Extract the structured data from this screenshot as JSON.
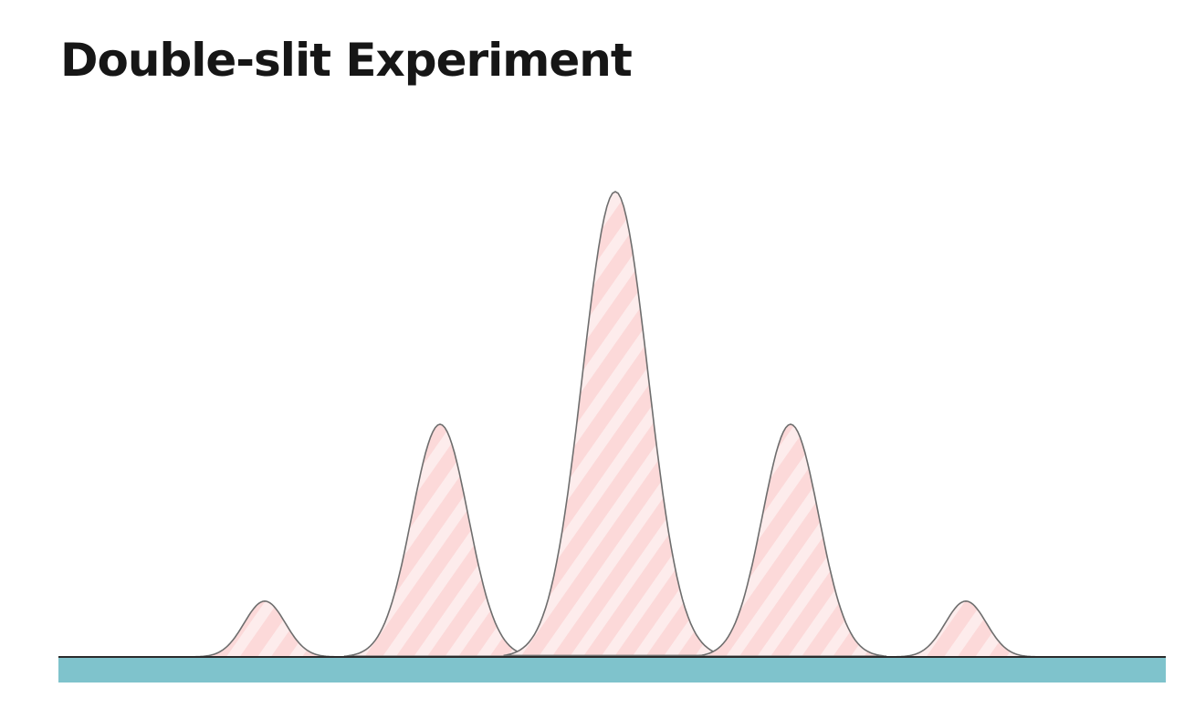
{
  "title": "Double-slit Experiment",
  "colors": {
    "peak_fill": "#fcd9d9",
    "peak_stripe": "#fdecec",
    "peak_outline": "#6e6e6e",
    "screen": "#7fc3cc",
    "baseline": "#2b2b2b",
    "title": "#161616"
  },
  "peaks": [
    {
      "position": -2,
      "relative_intensity": 0.12
    },
    {
      "position": -1,
      "relative_intensity": 0.5
    },
    {
      "position": 0,
      "relative_intensity": 1.0
    },
    {
      "position": 1,
      "relative_intensity": 0.5
    },
    {
      "position": 2,
      "relative_intensity": 0.12
    }
  ]
}
